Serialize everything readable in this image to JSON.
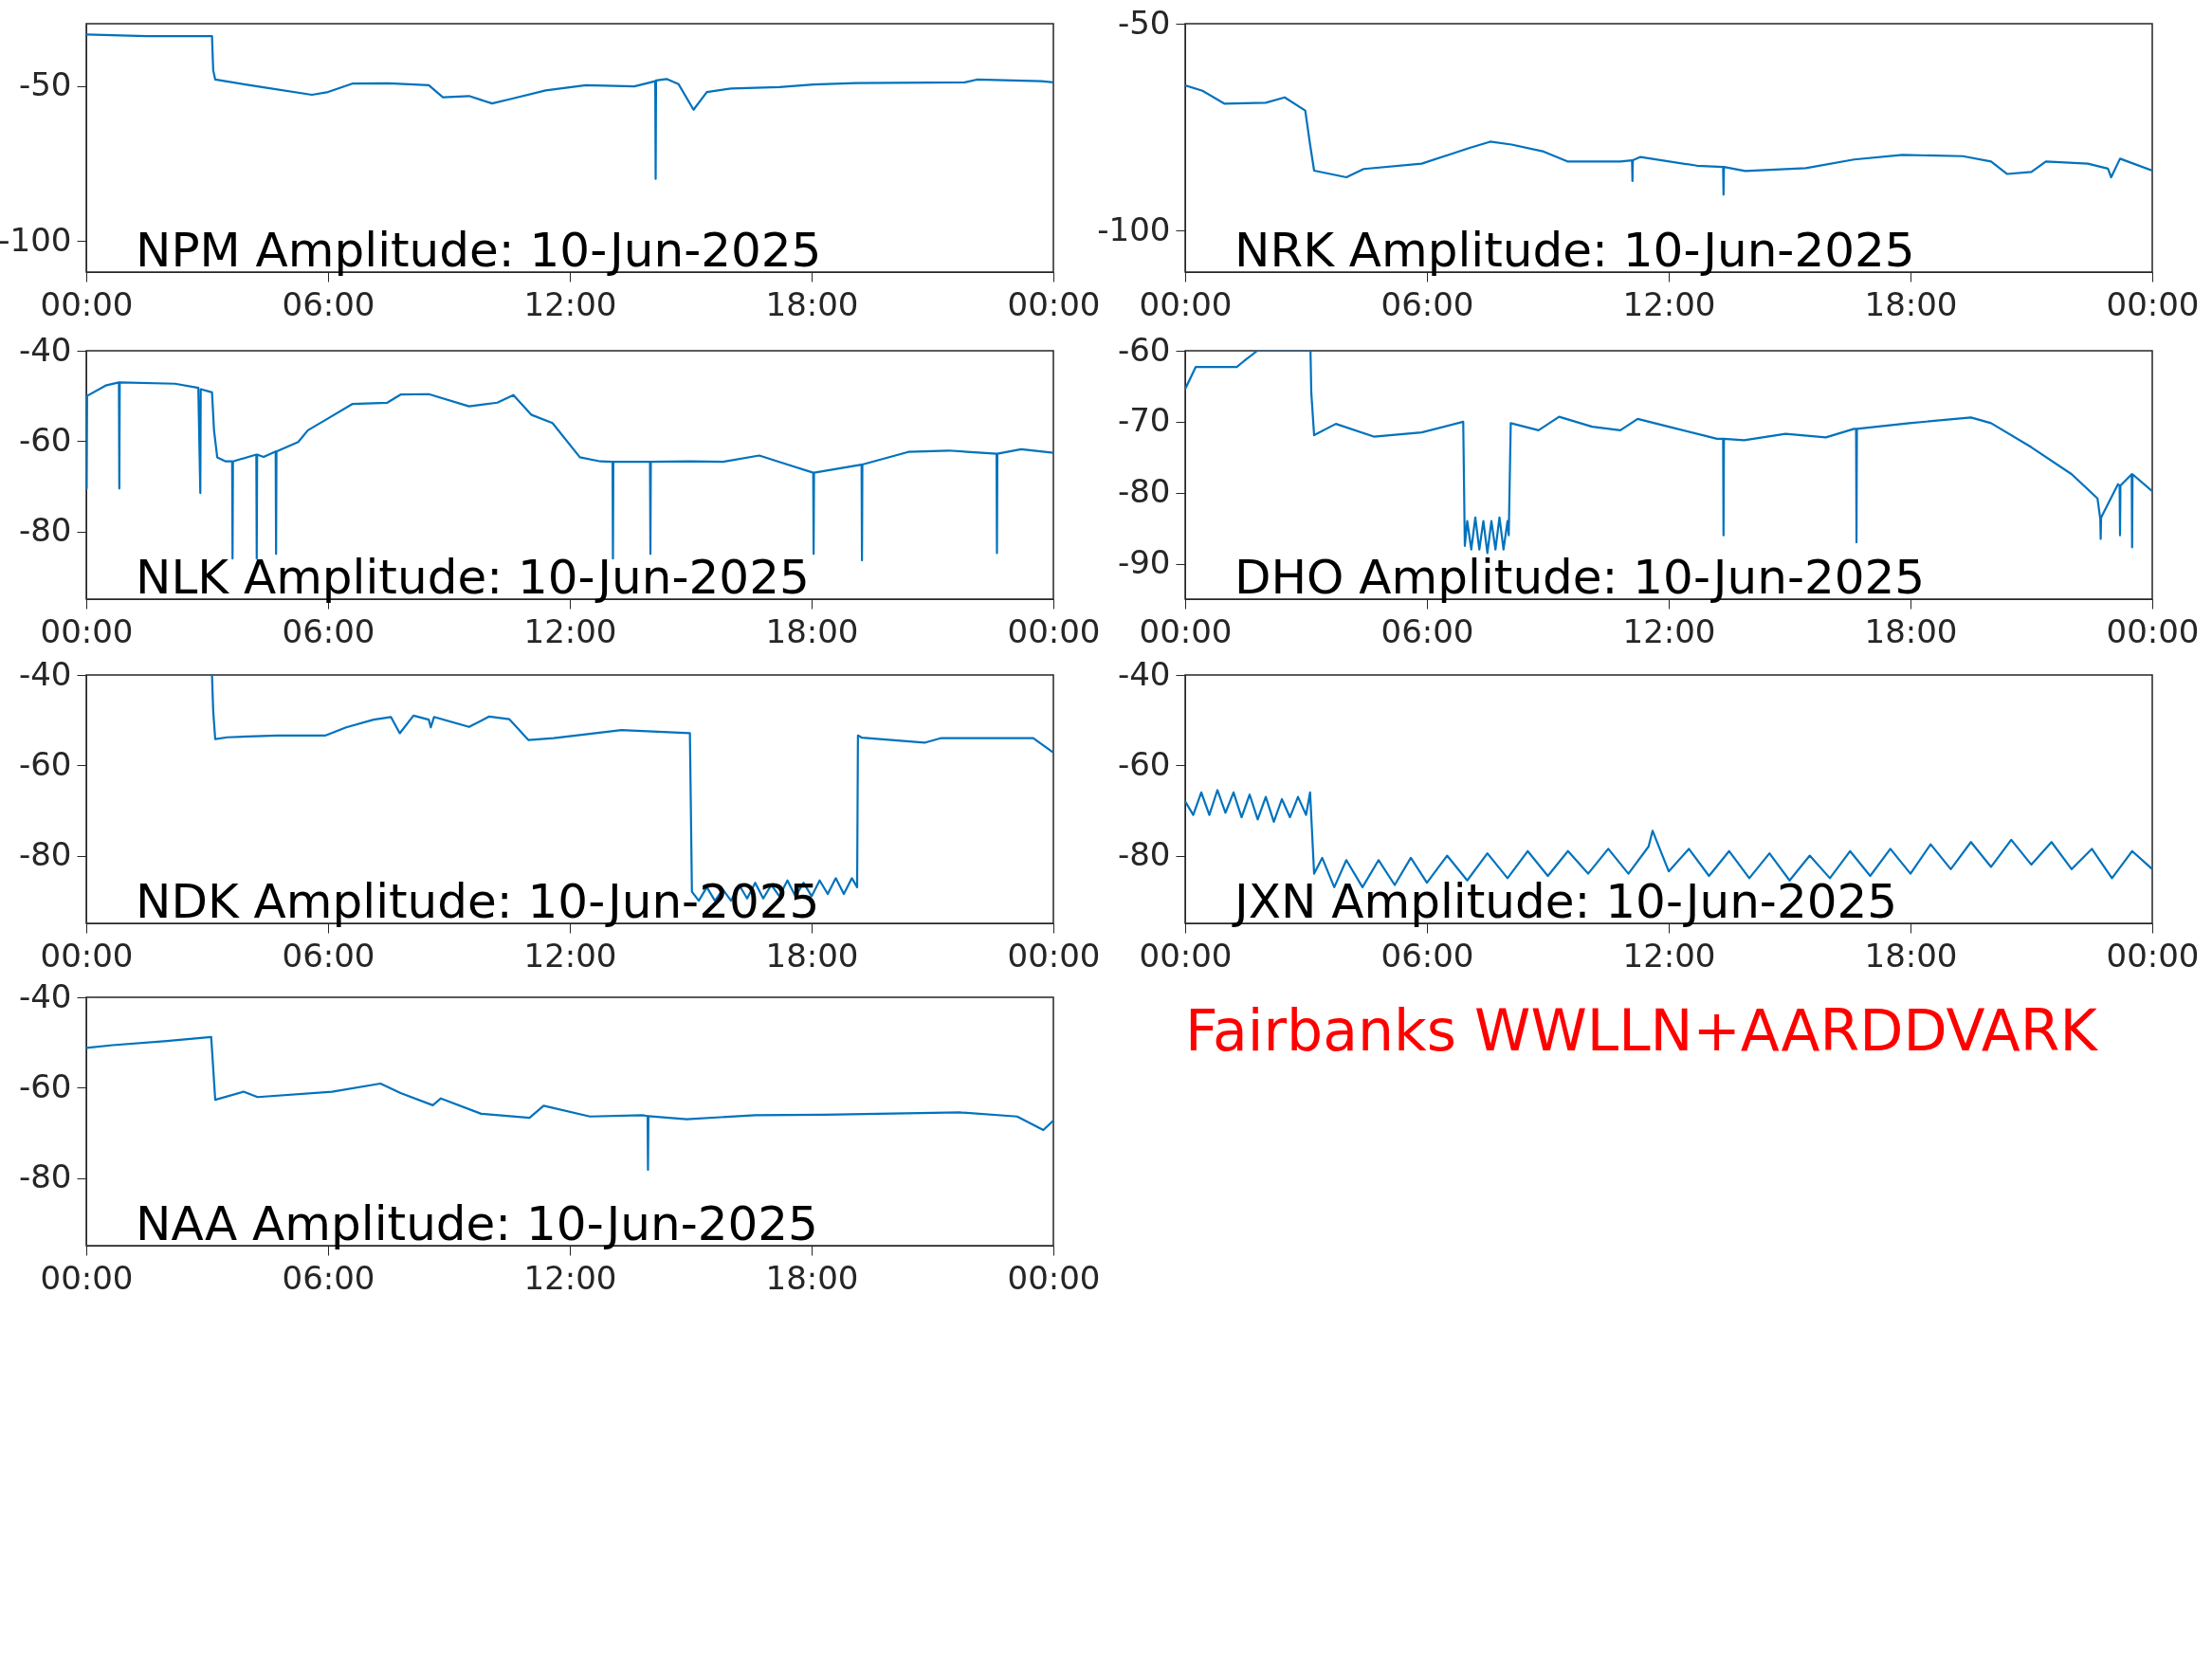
{
  "chart_data": [
    {
      "type": "line",
      "title": "NPM Amplitude: 10-Jun-2025",
      "xlim": [
        0,
        24
      ],
      "xticks": [
        {
          "value": 0,
          "label": "00:00"
        },
        {
          "value": 6,
          "label": "06:00"
        },
        {
          "value": 12,
          "label": "12:00"
        },
        {
          "value": 18,
          "label": "18:00"
        },
        {
          "value": 24,
          "label": "00:00"
        }
      ],
      "ylim": [
        -110,
        -30
      ],
      "yticks": [
        -100,
        -50
      ],
      "grid": false,
      "x": [
        0,
        1.5,
        3.12,
        3.15,
        3.2,
        4.4,
        5.6,
        6.0,
        6.6,
        7.5,
        8.5,
        8.85,
        9.5,
        10.07,
        10.55,
        11.4,
        12.4,
        13.6,
        14.12,
        14.13,
        14.14,
        14.4,
        14.7,
        15.07,
        15.4,
        16,
        17.2,
        18.05,
        19.1,
        21.8,
        22.1,
        23.7,
        24
      ],
      "series": [
        {
          "color": "#0072bd",
          "values": [
            -33.5,
            -34,
            -34,
            -45,
            -48,
            -50.5,
            -52.9,
            -52,
            -49.3,
            -49.2,
            -49.8,
            -53.7,
            -53.3,
            -55.7,
            -54.2,
            -51.5,
            -49.8,
            -50.2,
            -48.5,
            -80,
            -48.3,
            -47.8,
            -49.5,
            -57.7,
            -52,
            -50.9,
            -50.4,
            -49.6,
            -49.1,
            -48.9,
            -48,
            -48.5,
            -48.9
          ]
        }
      ]
    },
    {
      "type": "line",
      "title": "NRK Amplitude: 10-Jun-2025",
      "xlim": [
        0,
        24
      ],
      "xticks": [
        {
          "value": 0,
          "label": "00:00"
        },
        {
          "value": 6,
          "label": "06:00"
        },
        {
          "value": 12,
          "label": "12:00"
        },
        {
          "value": 18,
          "label": "18:00"
        },
        {
          "value": 24,
          "label": "00:00"
        }
      ],
      "ylim": [
        -110,
        -50
      ],
      "yticks": [
        -100,
        -50
      ],
      "grid": false,
      "x": [
        0,
        0.43,
        0.97,
        2,
        2.47,
        2.98,
        3.1,
        3.2,
        4.0,
        4.43,
        5.87,
        7.06,
        7.57,
        8.1,
        8.9,
        9.5,
        10.8,
        11.09,
        11.1,
        11.11,
        11.3,
        12.7,
        13.35,
        13.36,
        13.37,
        13.9,
        15.4,
        16.6,
        17.8,
        19.3,
        20,
        20.4,
        21,
        21.36,
        22.4,
        22.9,
        22.98,
        23.2,
        24
      ],
      "series": [
        {
          "color": "#0072bd",
          "values": [
            -64.9,
            -66.2,
            -69.3,
            -69.1,
            -67.8,
            -71,
            -79.2,
            -85.5,
            -87.1,
            -85.1,
            -83.8,
            -80,
            -78.5,
            -79.2,
            -80.9,
            -83.3,
            -83.3,
            -83,
            -88,
            -83,
            -82.2,
            -84.3,
            -84.6,
            -91.3,
            -84.6,
            -85.6,
            -84.9,
            -82.8,
            -81.7,
            -82,
            -83.3,
            -86.3,
            -85.8,
            -83.3,
            -83.8,
            -85,
            -87.1,
            -82.6,
            -85.5
          ]
        }
      ]
    },
    {
      "type": "line",
      "title": "NLK Amplitude: 10-Jun-2025",
      "xlim": [
        0,
        24
      ],
      "xticks": [
        {
          "value": 0,
          "label": "00:00"
        },
        {
          "value": 6,
          "label": "06:00"
        },
        {
          "value": 12,
          "label": "12:00"
        },
        {
          "value": 18,
          "label": "18:00"
        },
        {
          "value": 24,
          "label": "00:00"
        }
      ],
      "ylim": [
        -95,
        -40
      ],
      "yticks": [
        -40,
        -60,
        -80
      ],
      "grid": false,
      "x": [
        0,
        0.01,
        0.02,
        0.48,
        0.81,
        0.82,
        0.83,
        2.2,
        2.78,
        2.83,
        2.84,
        3.12,
        3.17,
        3.25,
        3.46,
        3.62,
        3.63,
        3.64,
        4.22,
        4.23,
        4.24,
        4.4,
        4.7,
        4.71,
        4.72,
        5.26,
        5.5,
        5.94,
        6.6,
        7.47,
        7.8,
        8.5,
        9.5,
        10.2,
        10.6,
        11.05,
        11.57,
        12.25,
        12.76,
        13.06,
        13.07,
        13.08,
        13.99,
        14.0,
        14.01,
        14.98,
        15.8,
        16.7,
        17.4,
        18.04,
        18.05,
        18.06,
        19.24,
        19.25,
        19.26,
        20.4,
        21.4,
        22.59,
        22.6,
        22.61,
        23.2,
        24
      ],
      "series": [
        {
          "color": "#0072bd",
          "values": [
            -50,
            -70.5,
            -50,
            -47.7,
            -47,
            -70.5,
            -47,
            -47.3,
            -48.2,
            -71.5,
            -48.5,
            -49.2,
            -57.6,
            -63.6,
            -64.5,
            -64.5,
            -86,
            -64.5,
            -63,
            -86,
            -63,
            -63.5,
            -62.3,
            -85,
            -62.3,
            -60.2,
            -57.6,
            -55.3,
            -51.8,
            -51.5,
            -49.7,
            -49.6,
            -52.3,
            -51.5,
            -49.8,
            -54.2,
            -56,
            -63.6,
            -64.5,
            -64.6,
            -86,
            -64.6,
            -64.6,
            -85,
            -64.6,
            -64.5,
            -64.6,
            -63.2,
            -65.2,
            -67,
            -85,
            -67,
            -65.2,
            -86.4,
            -65.2,
            -62.4,
            -62.1,
            -62.8,
            -84.8,
            -62.8,
            -61.8,
            -62.6
          ]
        }
      ]
    },
    {
      "type": "line",
      "title": "DHO Amplitude: 10-Jun-2025",
      "xlim": [
        0,
        24
      ],
      "xticks": [
        {
          "value": 0,
          "label": "00:00"
        },
        {
          "value": 6,
          "label": "06:00"
        },
        {
          "value": 12,
          "label": "12:00"
        },
        {
          "value": 18,
          "label": "18:00"
        },
        {
          "value": 24,
          "label": "00:00"
        }
      ],
      "ylim": [
        -95,
        -60
      ],
      "yticks": [
        -60,
        -70,
        -80,
        -90
      ],
      "grid": false,
      "x": [
        0,
        0.26,
        1.28,
        1.45,
        1.79,
        3.11,
        3.13,
        3.2,
        3.74,
        4.68,
        5.87,
        6.9,
        6.94,
        7.0,
        7.1,
        7.2,
        7.3,
        7.4,
        7.5,
        7.6,
        7.7,
        7.8,
        7.9,
        8.0,
        8.03,
        8.08,
        8.77,
        9.28,
        10.1,
        10.8,
        11.23,
        12,
        13.2,
        13.35,
        13.36,
        13.37,
        13.87,
        14.9,
        15.9,
        16.6,
        16.65,
        16.66,
        16.67,
        17.97,
        19.5,
        20,
        21,
        22,
        22.64,
        22.71,
        22.72,
        22.73,
        23.15,
        23.19,
        23.2,
        23.21,
        23.49,
        23.5,
        23.51,
        24
      ],
      "series": [
        {
          "color": "#0072bd",
          "values": [
            -65.4,
            -62.3,
            -62.3,
            -61.5,
            -60,
            -60,
            -65.9,
            -71.9,
            -70.3,
            -72.1,
            -71.5,
            -70,
            -87.5,
            -84,
            -88,
            -83.5,
            -88,
            -84,
            -88.5,
            -84,
            -88,
            -83.5,
            -88,
            -84,
            -86,
            -70.2,
            -71.2,
            -69.3,
            -70.7,
            -71.2,
            -69.6,
            -70.7,
            -72.4,
            -72.4,
            -86,
            -72.4,
            -72.6,
            -71.7,
            -72.2,
            -71,
            -71,
            -87,
            -71,
            -70.2,
            -69.4,
            -70.2,
            -73.6,
            -77.4,
            -80.8,
            -83.7,
            -86.5,
            -83.5,
            -78.8,
            -79,
            -86,
            -79,
            -77.4,
            -87.7,
            -77.4,
            -79.8
          ]
        }
      ]
    },
    {
      "type": "line",
      "title": "NDK Amplitude: 10-Jun-2025",
      "xlim": [
        0,
        24
      ],
      "xticks": [
        {
          "value": 0,
          "label": "00:00"
        },
        {
          "value": 6,
          "label": "06:00"
        },
        {
          "value": 12,
          "label": "12:00"
        },
        {
          "value": 18,
          "label": "18:00"
        },
        {
          "value": 24,
          "label": "00:00"
        }
      ],
      "ylim": [
        -95,
        -40
      ],
      "yticks": [
        -40,
        -60,
        -80
      ],
      "grid": false,
      "x": [
        1.77,
        3.12,
        3.15,
        3.2,
        3.5,
        4.74,
        5.94,
        6.45,
        7.13,
        7.56,
        7.78,
        8.12,
        8.5,
        8.55,
        8.63,
        9.5,
        10,
        10.5,
        10.97,
        11.6,
        13.28,
        14.98,
        15.03,
        15.2,
        15.4,
        15.6,
        15.8,
        16.0,
        16.2,
        16.4,
        16.6,
        16.8,
        17.0,
        17.2,
        17.4,
        17.6,
        17.8,
        18.0,
        18.2,
        18.4,
        18.6,
        18.8,
        19.0,
        19.13,
        19.15,
        19.25,
        20.8,
        21.2,
        23.5,
        24
      ],
      "series": [
        {
          "color": "#0072bd",
          "values": [
            -40,
            -40,
            -48,
            -54.2,
            -53.8,
            -53.4,
            -53.4,
            -51.6,
            -49.9,
            -49.3,
            -52.9,
            -49,
            -49.9,
            -51.6,
            -49.3,
            -51.5,
            -49.2,
            -49.8,
            -54.4,
            -54,
            -52.2,
            -52.9,
            -88,
            -90,
            -87,
            -90,
            -87.5,
            -90,
            -86.5,
            -89.5,
            -86,
            -89.5,
            -86.5,
            -89,
            -85.5,
            -89,
            -86,
            -89,
            -85.5,
            -88.5,
            -85,
            -88.5,
            -85,
            -87,
            -53.4,
            -53.9,
            -55,
            -54,
            -54,
            -57.2
          ]
        }
      ]
    },
    {
      "type": "line",
      "title": "JXN Amplitude: 10-Jun-2025",
      "xlim": [
        0,
        24
      ],
      "xticks": [
        {
          "value": 0,
          "label": "00:00"
        },
        {
          "value": 6,
          "label": "06:00"
        },
        {
          "value": 12,
          "label": "12:00"
        },
        {
          "value": 18,
          "label": "18:00"
        },
        {
          "value": 24,
          "label": "00:00"
        }
      ],
      "ylim": [
        -95,
        -40
      ],
      "yticks": [
        -40,
        -60,
        -80
      ],
      "grid": false,
      "x": [
        0,
        0.2,
        0.4,
        0.6,
        0.8,
        1.0,
        1.2,
        1.4,
        1.6,
        1.8,
        2.0,
        2.2,
        2.4,
        2.6,
        2.8,
        3.0,
        3.1,
        3.2,
        3.4,
        3.7,
        4.0,
        4.4,
        4.8,
        5.2,
        5.6,
        6.0,
        6.5,
        7.0,
        7.5,
        8.0,
        8.5,
        9.0,
        9.5,
        10.0,
        10.5,
        11.0,
        11.5,
        11.6,
        12.0,
        12.5,
        13.0,
        13.5,
        14.0,
        14.5,
        15.0,
        15.5,
        16.0,
        16.5,
        17.0,
        17.5,
        18.0,
        18.5,
        19.0,
        19.5,
        20.0,
        20.5,
        21.0,
        21.5,
        22.0,
        22.5,
        23.0,
        23.5,
        24
      ],
      "series": [
        {
          "color": "#0072bd",
          "values": [
            -68,
            -71,
            -66,
            -71,
            -65.5,
            -70.5,
            -66,
            -71.5,
            -66.5,
            -72,
            -67,
            -72.5,
            -67.5,
            -71.5,
            -67,
            -71,
            -66,
            -84,
            -80.5,
            -87,
            -81,
            -87,
            -81,
            -86.5,
            -80.5,
            -86,
            -80,
            -85.5,
            -79.5,
            -85,
            -79,
            -84.5,
            -79,
            -84,
            -78.5,
            -84,
            -78,
            -74.5,
            -83.5,
            -78.5,
            -84.5,
            -79,
            -85,
            -79.5,
            -85.5,
            -80,
            -85,
            -79,
            -84.5,
            -78.5,
            -84,
            -77.5,
            -83,
            -77,
            -82.5,
            -76.5,
            -82,
            -77,
            -83,
            -78.5,
            -85,
            -79,
            -83
          ]
        }
      ]
    },
    {
      "type": "line",
      "title": "NAA Amplitude: 10-Jun-2025",
      "xlim": [
        0,
        24
      ],
      "xticks": [
        {
          "value": 0,
          "label": "00:00"
        },
        {
          "value": 6,
          "label": "06:00"
        },
        {
          "value": 12,
          "label": "12:00"
        },
        {
          "value": 18,
          "label": "18:00"
        },
        {
          "value": 24,
          "label": "00:00"
        }
      ],
      "ylim": [
        -95,
        -40
      ],
      "yticks": [
        -40,
        -60,
        -80
      ],
      "grid": false,
      "x": [
        0,
        0.65,
        2,
        3.1,
        3.2,
        3.9,
        4.25,
        6.1,
        7.3,
        7.8,
        8.6,
        8.8,
        9.8,
        11,
        11.35,
        12.5,
        13.8,
        13.93,
        13.94,
        13.95,
        14.9,
        16.6,
        18.3,
        21.7,
        23.1,
        23.75,
        24
      ],
      "series": [
        {
          "color": "#0072bd",
          "values": [
            -51.2,
            -50.6,
            -49.7,
            -48.8,
            -62.7,
            -60.9,
            -62.1,
            -60.9,
            -59.1,
            -61.2,
            -63.9,
            -62.4,
            -65.8,
            -66.7,
            -64,
            -66.4,
            -66.1,
            -66.3,
            -78.2,
            -66.3,
            -67,
            -66.1,
            -66,
            -65.5,
            -66.4,
            -69.4,
            -67.3
          ]
        }
      ]
    },
    {
      "type": "other",
      "annotations": [
        "Fairbanks WWLLN+AARDDVARK"
      ]
    }
  ]
}
